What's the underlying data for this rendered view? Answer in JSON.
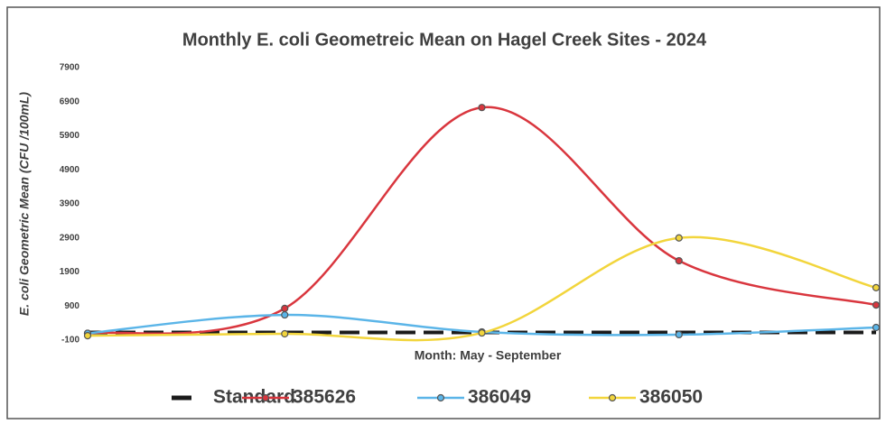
{
  "chart_data": {
    "type": "line",
    "title": "Monthly E. coli Geometreic Mean on Hagel Creek Sites - 2024",
    "x_label": "Month:  May - September",
    "y_label": "E. coli Geometric Mean (CFU /100mL)",
    "categories": [
      null,
      null,
      null,
      null,
      null
    ],
    "ylim": [
      -100,
      7900
    ],
    "yticks": [
      -100,
      900,
      1900,
      2900,
      3900,
      4900,
      5900,
      6900,
      7900
    ],
    "grid": false,
    "legend": "bottom",
    "series": [
      {
        "name": "Standard",
        "color": "#1a1a1a",
        "dashed": true,
        "markers": false,
        "values": [
          126,
          126,
          126,
          126,
          126
        ]
      },
      {
        "name": "385626",
        "color": "#d9363e",
        "markers": true,
        "values": [
          100,
          830,
          6730,
          2230,
          930
        ]
      },
      {
        "name": "386049",
        "color": "#5bb5e8",
        "markers": true,
        "values": [
          100,
          640,
          140,
          60,
          270
        ]
      },
      {
        "name": "386050",
        "color": "#f2d53c",
        "markers": true,
        "values": [
          30,
          85,
          110,
          2900,
          1440
        ]
      }
    ]
  }
}
